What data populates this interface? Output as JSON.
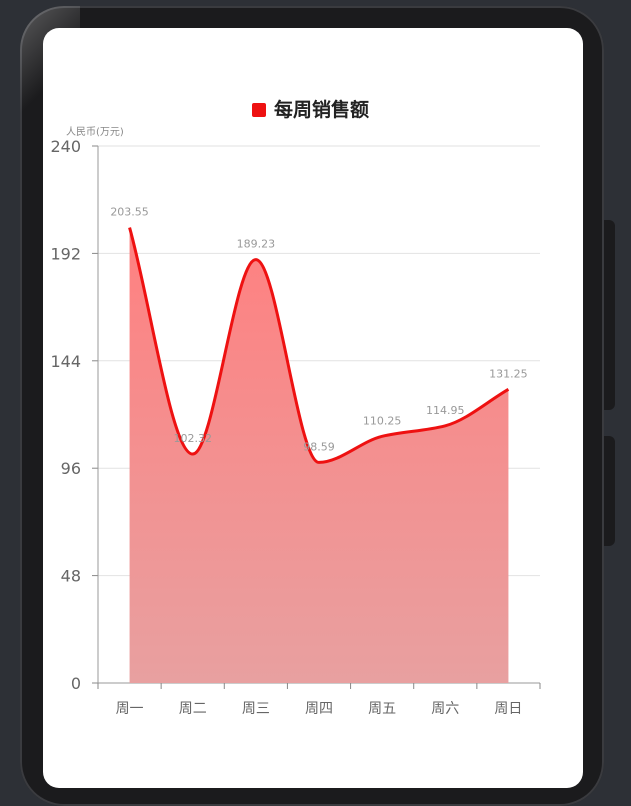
{
  "chart_data": {
    "type": "area",
    "legend": "每周销售额",
    "unit_label": "人民币(万元)",
    "categories": [
      "周一",
      "周二",
      "周三",
      "周四",
      "周五",
      "周六",
      "周日"
    ],
    "values": [
      203.55,
      102.32,
      189.23,
      98.59,
      110.25,
      114.95,
      131.25
    ],
    "value_labels": [
      "203.55",
      "102.32",
      "189.23",
      "98.59",
      "110.25",
      "114.95",
      "131.25"
    ],
    "yticks": [
      "0",
      "48",
      "96",
      "144",
      "192",
      "240"
    ],
    "ylim": [
      0,
      240
    ],
    "colors": {
      "line": "#ee1111",
      "area_top": "#ff8080",
      "area_bottom": "#e8a0a0",
      "legend": "#ee1111"
    },
    "legend_position": "top-center",
    "grid": true
  }
}
